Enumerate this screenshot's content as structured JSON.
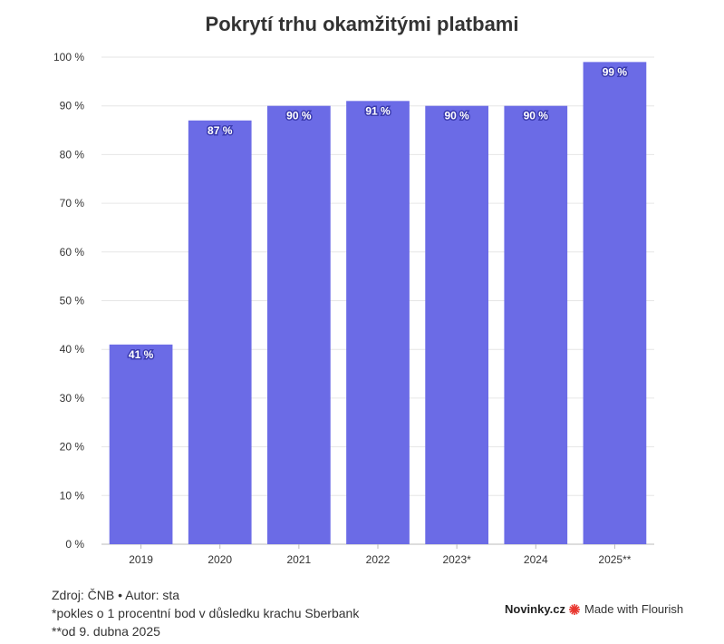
{
  "chart_data": {
    "type": "bar",
    "title": "Pokrytí trhu okamžitými platbami",
    "categories": [
      "2019",
      "2020",
      "2021",
      "2022",
      "2023*",
      "2024",
      "2025**"
    ],
    "values": [
      41,
      87,
      90,
      91,
      90,
      90,
      99
    ],
    "value_labels": [
      "41 %",
      "87 %",
      "90 %",
      "91 %",
      "90 %",
      "90 %",
      "99 %"
    ],
    "y_ticks": [
      0,
      10,
      20,
      30,
      40,
      50,
      60,
      70,
      80,
      90,
      100
    ],
    "y_tick_labels": [
      "0 %",
      "10 %",
      "20 %",
      "30 %",
      "40 %",
      "50 %",
      "60 %",
      "70 %",
      "80 %",
      "90 %",
      "100 %"
    ],
    "ylim": [
      0,
      100
    ],
    "grid": true,
    "bar_color": "#6b6be6"
  },
  "footer": {
    "source": "Zdroj: ČNB • Autor: sta",
    "note1": "*pokles o 1 procentní bod v důsledku krachu Sberbank",
    "note2": "**od 9. dubna 2025"
  },
  "branding": {
    "novinky": "Novinky.cz",
    "flourish": "Made with Flourish",
    "flourish_color": "#e8362e"
  }
}
